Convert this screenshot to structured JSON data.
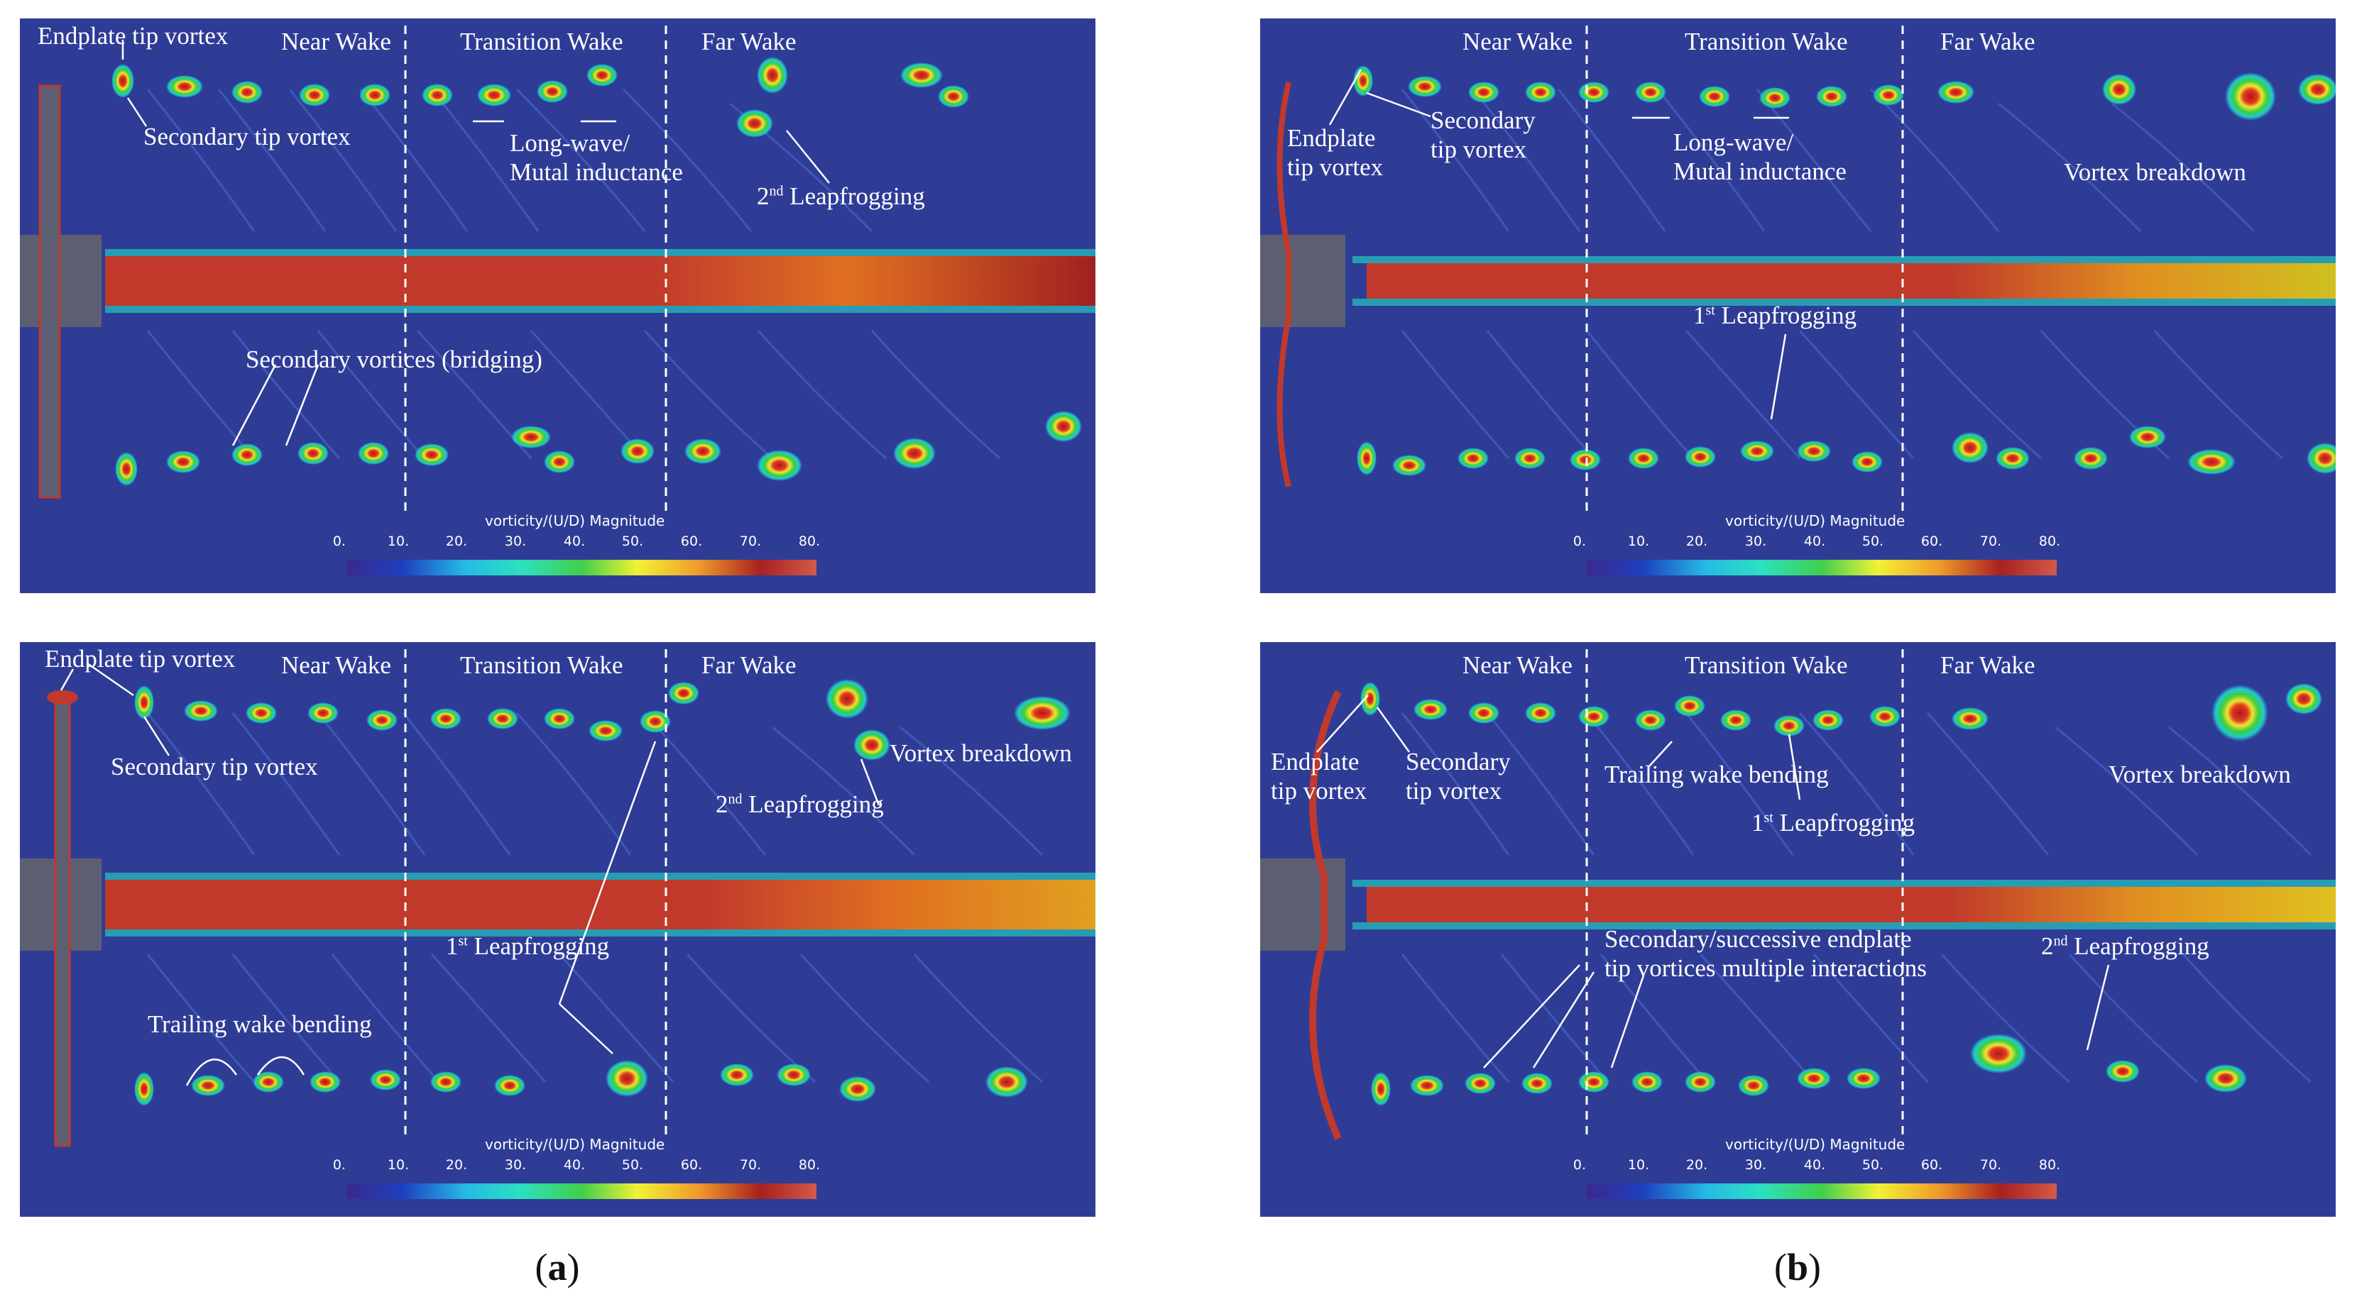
{
  "colors": {
    "background": "#2f3c96",
    "colormap": [
      "#2b2b8c",
      "#1e3fbf",
      "#25b8e6",
      "#2ce0c0",
      "#3fcf4a",
      "#f2f236",
      "#f09a2a",
      "#a82020",
      "#d25a48"
    ],
    "vortex_outer": "#1fc8c8",
    "vortex_mid": "#3cc53c",
    "vortex_inner": "#f0e030",
    "vortex_core": "#c02020",
    "hub": "#5c5f72"
  },
  "colorbar": {
    "title": "vorticity/(U/D) Magnitude",
    "ticks": [
      "0.",
      "10.",
      "20.",
      "30.",
      "40.",
      "50.",
      "60.",
      "70.",
      "80."
    ]
  },
  "captions": {
    "a": {
      "open": "(",
      "letter": "a",
      "close": ")"
    },
    "b": {
      "open": "(",
      "letter": "b",
      "close": ")"
    }
  },
  "panels": {
    "a_top": {
      "near_wake": "Near Wake",
      "transition_wake": "Transition Wake",
      "far_wake": "Far Wake",
      "endplate": "Endplate tip vortex",
      "secondary_tip": "Secondary tip vortex",
      "longwave_1": "Long-wave/",
      "longwave_2": "Mutal inductance",
      "leap2_num": "2",
      "leap2_sup": "nd",
      "leap2_text": " Leapfrogging",
      "bridging": "Secondary vortices (bridging)"
    },
    "b_top": {
      "near_wake": "Near Wake",
      "transition_wake": "Transition Wake",
      "far_wake": "Far Wake",
      "endplate_1": "Endplate",
      "endplate_2": "tip vortex",
      "secondary_1": "Secondary",
      "secondary_2": "tip vortex",
      "longwave_1": "Long-wave/",
      "longwave_2": "Mutal inductance",
      "breakdown": "Vortex breakdown",
      "leap1_num": "1",
      "leap1_sup": "st",
      "leap1_text": " Leapfrogging"
    },
    "a_bottom": {
      "near_wake": "Near Wake",
      "transition_wake": "Transition Wake",
      "far_wake": "Far Wake",
      "endplate": "Endplate tip vortex",
      "secondary_tip": "Secondary tip vortex",
      "breakdown": "Vortex breakdown",
      "leap2_num": "2",
      "leap2_sup": "nd",
      "leap2_text": " Leapfrogging",
      "leap1_num": "1",
      "leap1_sup": "st",
      "leap1_text": " Leapfrogging",
      "trailing": "Trailing wake bending"
    },
    "b_bottom": {
      "near_wake": "Near Wake",
      "transition_wake": "Transition Wake",
      "far_wake": "Far Wake",
      "endplate_1": "Endplate",
      "endplate_2": "tip vortex",
      "secondary_1": "Secondary",
      "secondary_2": "tip vortex",
      "trailing": "Trailing wake bending",
      "leap1_num": "1",
      "leap1_sup": "st",
      "leap1_text": " Leapfrogging",
      "breakdown": "Vortex breakdown",
      "multi_1": "Secondary/successive endplate",
      "multi_2": "tip vortices multiple interactions",
      "leap2_num": "2",
      "leap2_sup": "nd",
      "leap2_text": " Leapfrogging"
    }
  }
}
